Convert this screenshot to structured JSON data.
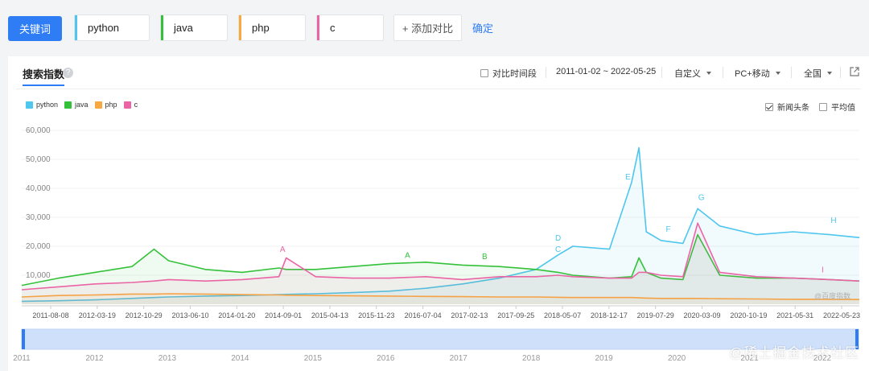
{
  "toolbar": {
    "keyword_button": "关键词",
    "keywords": [
      {
        "label": "python",
        "color": "#4ec6ee"
      },
      {
        "label": "java",
        "color": "#34c13a"
      },
      {
        "label": "php",
        "color": "#f7a83e"
      },
      {
        "label": "c",
        "color": "#ea64a6"
      }
    ],
    "add_label": "+ 添加对比",
    "confirm_label": "确定"
  },
  "panel": {
    "title": "搜索指数",
    "help_glyph": "?",
    "compare_label": "对比时间段",
    "date_range": "2011-01-02 ~ 2022-05-25",
    "custom_label": "自定义",
    "device_label": "PC+移动",
    "region_label": "全国",
    "news_label": "新闻头条",
    "news_checked": true,
    "avg_label": "平均值",
    "avg_checked": false
  },
  "watermark_chart": "@百度指数",
  "watermark_site": "@稀土掘金技术社区",
  "chart_data": {
    "type": "line",
    "ylim": [
      0,
      60000
    ],
    "yticks": [
      "60,000",
      "50,000",
      "40,000",
      "30,000",
      "20,000",
      "10,000"
    ],
    "xticks": [
      "2011-08-08",
      "2012-03-19",
      "2012-10-29",
      "2013-06-10",
      "2014-01-20",
      "2014-09-01",
      "2015-04-13",
      "2015-11-23",
      "2016-07-04",
      "2017-02-13",
      "2017-09-25",
      "2018-05-07",
      "2018-12-17",
      "2019-07-29",
      "2020-03-09",
      "2020-10-19",
      "2021-05-31",
      "2022-05-23"
    ],
    "nav_years": [
      "2011",
      "2012",
      "2013",
      "2014",
      "2015",
      "2016",
      "2017",
      "2018",
      "2019",
      "2020",
      "2021",
      "2022"
    ],
    "x_years": [
      2011.0,
      2011.5,
      2012.0,
      2012.5,
      2012.8,
      2013.0,
      2013.5,
      2014.0,
      2014.5,
      2014.6,
      2015.0,
      2015.5,
      2016.0,
      2016.5,
      2017.0,
      2017.5,
      2018.0,
      2018.3,
      2018.5,
      2019.0,
      2019.3,
      2019.4,
      2019.5,
      2019.7,
      2020.0,
      2020.2,
      2020.5,
      2021.0,
      2021.5,
      2022.0,
      2022.4
    ],
    "series": [
      {
        "name": "python",
        "color": "#4ec6ee",
        "values": [
          1000,
          1200,
          1500,
          2000,
          2300,
          2500,
          2800,
          3000,
          3300,
          3400,
          3600,
          4000,
          4500,
          5500,
          7000,
          9000,
          12000,
          17000,
          20000,
          19000,
          42000,
          54000,
          25000,
          22000,
          21000,
          33000,
          27000,
          24000,
          25000,
          24000,
          23000
        ]
      },
      {
        "name": "java",
        "color": "#34c13a",
        "values": [
          6500,
          9000,
          11000,
          13000,
          19000,
          15000,
          12000,
          11000,
          12500,
          12000,
          12000,
          13000,
          14000,
          14500,
          13500,
          13000,
          12000,
          11000,
          10000,
          9000,
          9500,
          16000,
          11000,
          9000,
          8500,
          24000,
          10000,
          9000,
          9000,
          8500,
          8000
        ]
      },
      {
        "name": "php",
        "color": "#f7a83e",
        "values": [
          2500,
          3000,
          3200,
          3500,
          3500,
          3600,
          3500,
          3300,
          3200,
          3100,
          3000,
          2900,
          2800,
          2700,
          2600,
          2500,
          2500,
          2400,
          2300,
          2300,
          2300,
          2200,
          2100,
          2000,
          2000,
          2000,
          1900,
          1800,
          1700,
          1700,
          1600
        ]
      },
      {
        "name": "c",
        "color": "#ea64a6",
        "values": [
          5000,
          6000,
          7000,
          7500,
          8000,
          8500,
          8000,
          8500,
          9500,
          16000,
          9500,
          9000,
          9000,
          9500,
          8500,
          9500,
          9500,
          10000,
          9500,
          9000,
          9000,
          11000,
          11000,
          10000,
          9500,
          28000,
          11000,
          9500,
          9000,
          8500,
          8000
        ]
      }
    ],
    "annotations": [
      {
        "label": "A",
        "x": 2014.55,
        "y": 18000,
        "series": "c"
      },
      {
        "label": "A",
        "x": 2016.25,
        "y": 16000,
        "series": "java"
      },
      {
        "label": "B",
        "x": 2017.3,
        "y": 15500,
        "series": "java"
      },
      {
        "label": "C",
        "x": 2018.3,
        "y": 18000,
        "series": "python"
      },
      {
        "label": "D",
        "x": 2018.3,
        "y": 22000,
        "series": "python"
      },
      {
        "label": "E",
        "x": 2019.25,
        "y": 43000,
        "series": "python"
      },
      {
        "label": "F",
        "x": 2019.8,
        "y": 25000,
        "series": "python"
      },
      {
        "label": "G",
        "x": 2020.25,
        "y": 36000,
        "series": "python"
      },
      {
        "label": "H",
        "x": 2022.05,
        "y": 28000,
        "series": "python"
      },
      {
        "label": "I",
        "x": 2021.9,
        "y": 11000,
        "series": "c"
      }
    ]
  }
}
